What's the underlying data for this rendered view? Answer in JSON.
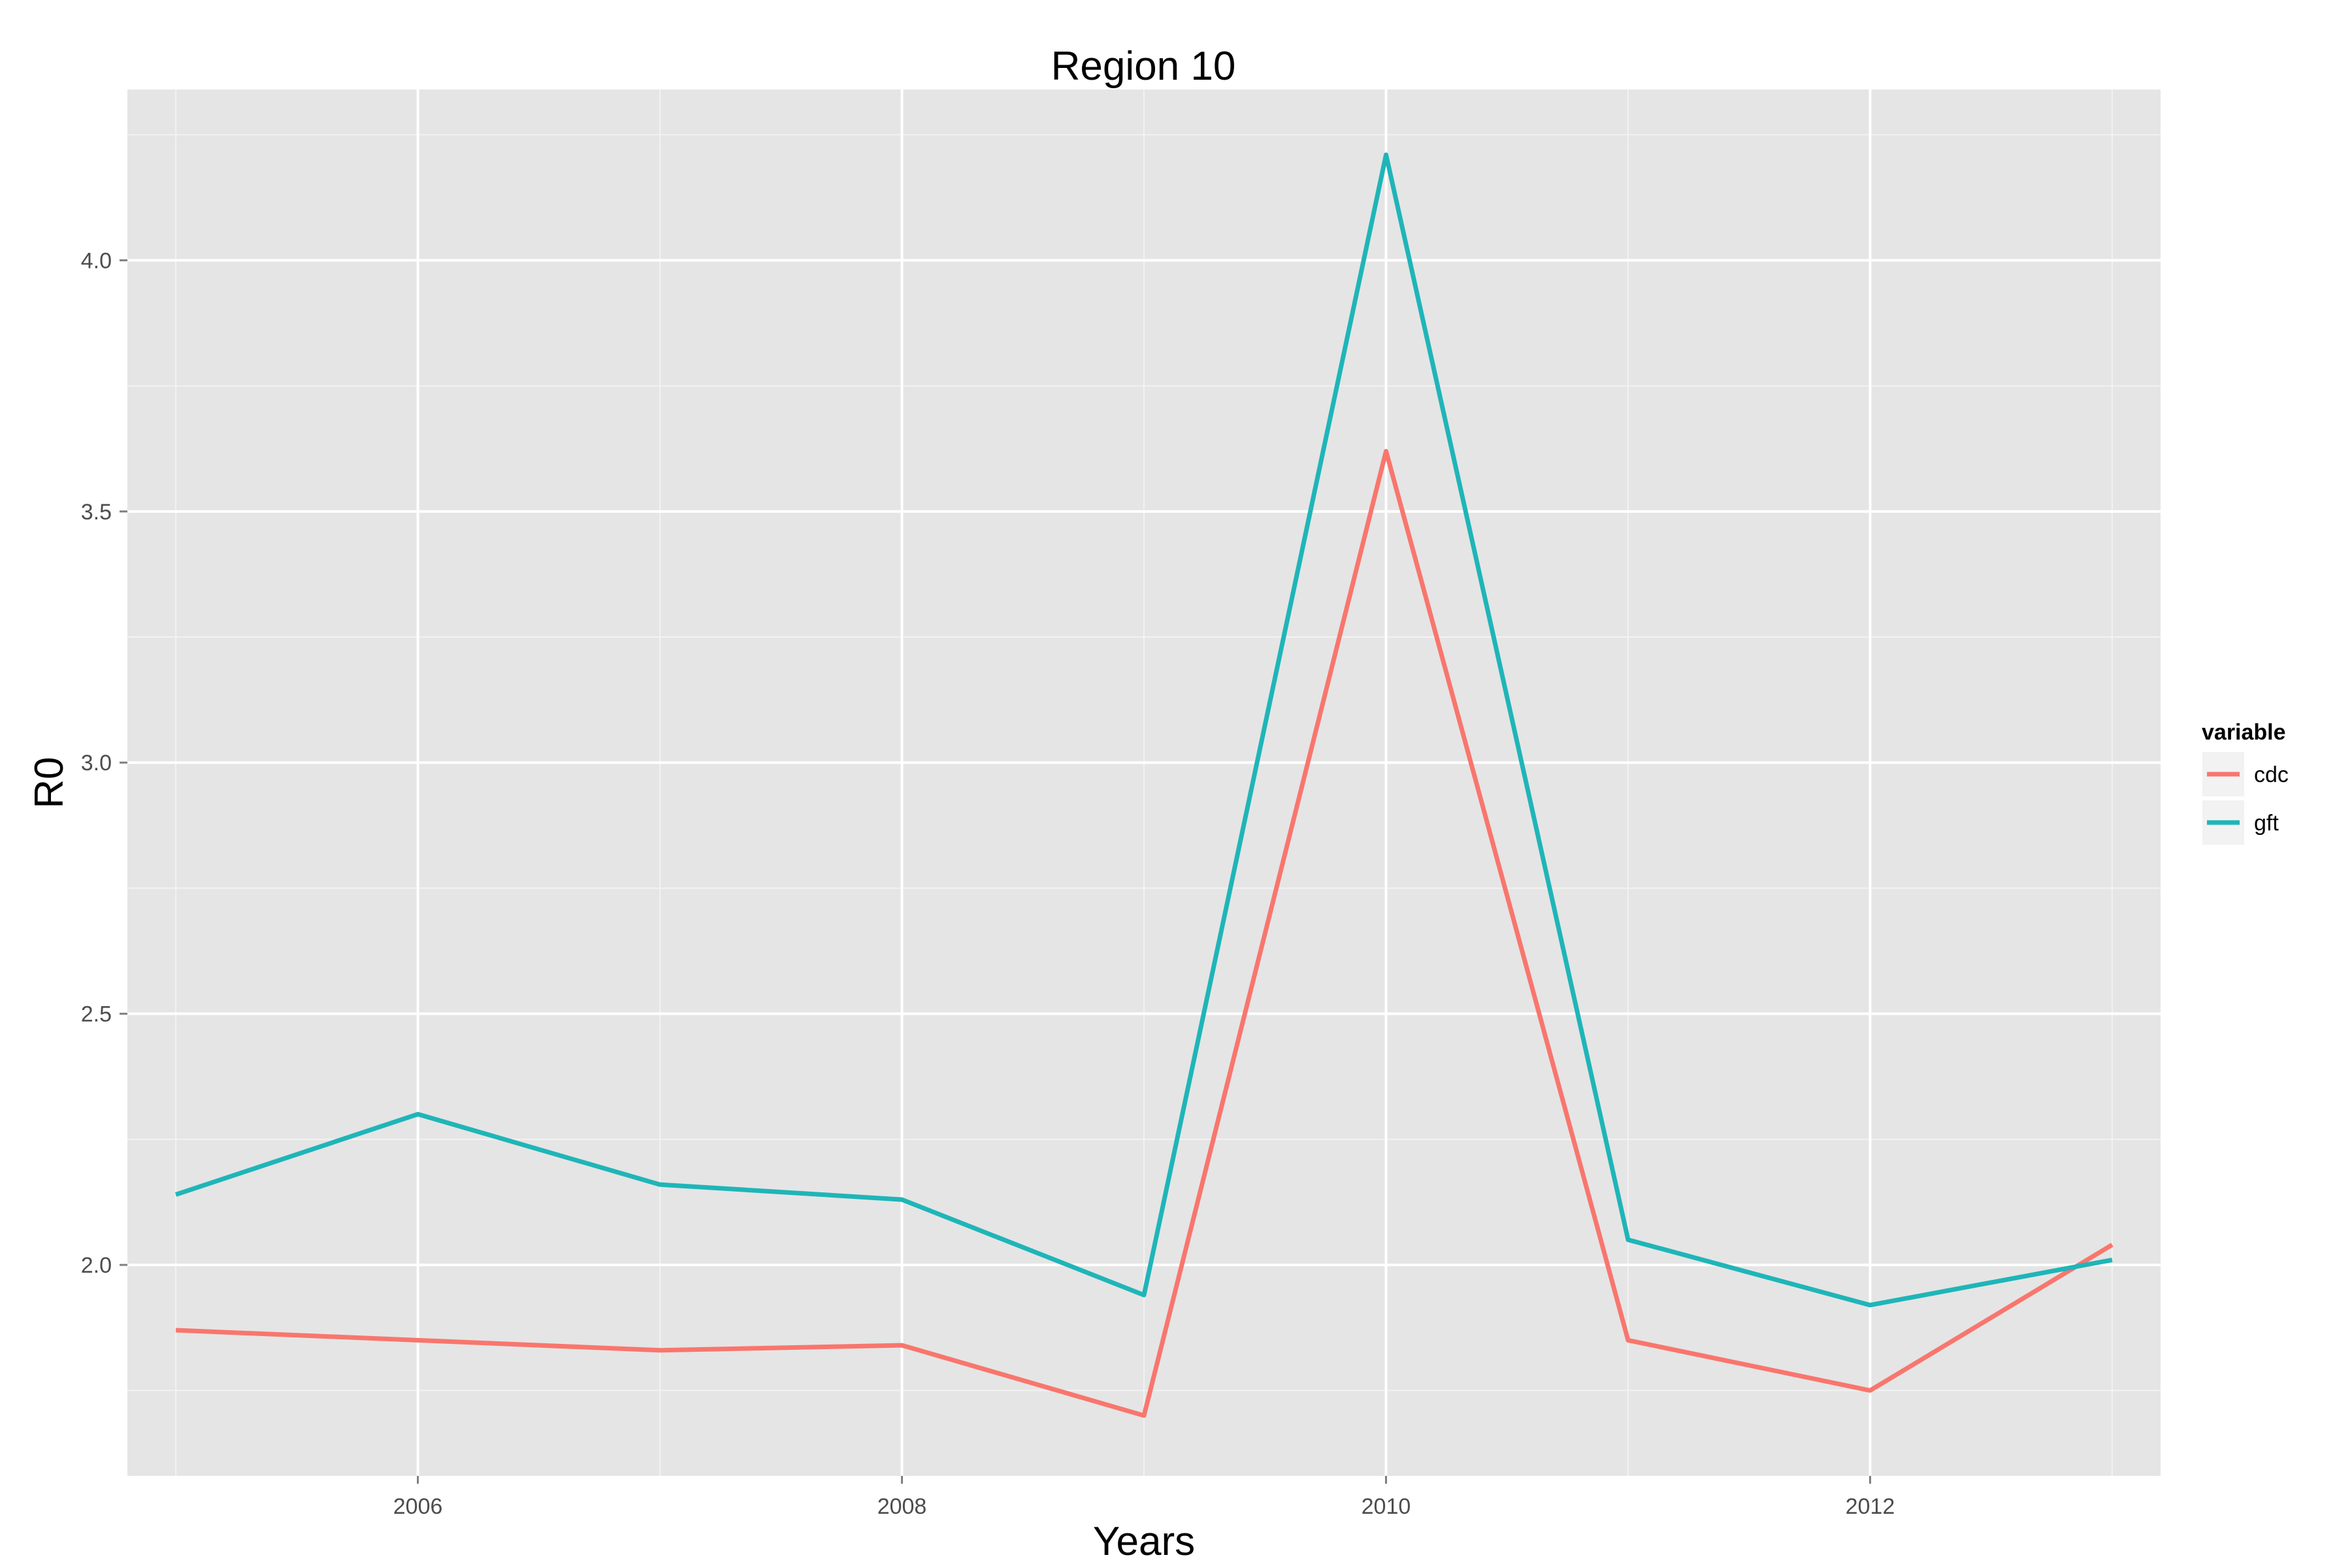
{
  "chart_data": {
    "type": "line",
    "title": "Region 10",
    "xlabel": "Years",
    "ylabel": "R0",
    "x": [
      2005,
      2006,
      2007,
      2008,
      2009,
      2010,
      2011,
      2012,
      2013
    ],
    "xlim": [
      2004.8,
      2013.2
    ],
    "ylim": [
      1.58,
      4.34
    ],
    "xticks": [
      2006,
      2008,
      2010,
      2012
    ],
    "xtick_labels": [
      "2006",
      "2008",
      "2010",
      "2012"
    ],
    "yticks": [
      2.0,
      2.5,
      3.0,
      3.5,
      4.0
    ],
    "ytick_labels": [
      "2.0",
      "2.5",
      "3.0",
      "3.5",
      "4.0"
    ],
    "grid": true,
    "legend": {
      "title": "variable",
      "placement": "right"
    },
    "series": [
      {
        "name": "cdc",
        "color": "#F8766D",
        "values": [
          1.87,
          1.85,
          1.83,
          1.84,
          1.7,
          3.62,
          1.85,
          1.75,
          2.04
        ]
      },
      {
        "name": "gft",
        "color": "#1FB5B8",
        "values": [
          2.14,
          2.3,
          2.16,
          2.13,
          1.94,
          4.21,
          2.05,
          1.92,
          2.01
        ]
      }
    ]
  }
}
